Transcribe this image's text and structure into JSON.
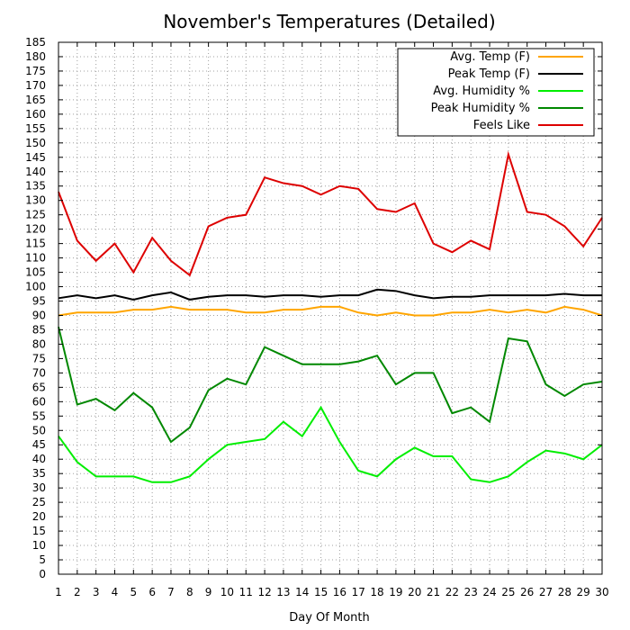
{
  "chart_data": {
    "type": "line",
    "title": "November's Temperatures (Detailed)",
    "xlabel": "Day Of Month",
    "ylabel": "",
    "xlim": [
      1,
      30
    ],
    "ylim": [
      0,
      185
    ],
    "y_tick_step": 5,
    "grid": true,
    "legend_position": "top-right",
    "x": [
      1,
      2,
      3,
      4,
      5,
      6,
      7,
      8,
      9,
      10,
      11,
      12,
      13,
      14,
      15,
      16,
      17,
      18,
      19,
      20,
      21,
      22,
      23,
      24,
      25,
      26,
      27,
      28,
      29,
      30
    ],
    "series": [
      {
        "name": "Avg. Temp (F)",
        "color": "#ffa500",
        "values": [
          90,
          91,
          91,
          91,
          92,
          92,
          93,
          92,
          92,
          92,
          91,
          91,
          92,
          92,
          93,
          93,
          91,
          90,
          91,
          90,
          90,
          91,
          91,
          92,
          91,
          92,
          91,
          93,
          92,
          90
        ]
      },
      {
        "name": "Peak Temp (F)",
        "color": "#000000",
        "values": [
          96,
          97,
          96,
          97,
          95.5,
          97,
          98,
          95.5,
          96.5,
          97,
          97,
          96.5,
          97,
          97,
          96.5,
          97,
          97,
          99,
          98.5,
          97,
          96,
          96.5,
          96.5,
          97,
          97,
          97,
          97,
          97.5,
          97,
          97
        ]
      },
      {
        "name": "Avg. Humidity %",
        "color": "#00ee00",
        "values": [
          48,
          39,
          34,
          34,
          34,
          32,
          32,
          34,
          40,
          45,
          46,
          47,
          53,
          48,
          58,
          46,
          36,
          34,
          40,
          44,
          41,
          41,
          33,
          32,
          34,
          39,
          43,
          42,
          40,
          45
        ]
      },
      {
        "name": "Peak Humidity %",
        "color": "#008800",
        "values": [
          86,
          59,
          61,
          57,
          63,
          58,
          46,
          51,
          64,
          68,
          66,
          79,
          76,
          73,
          73,
          73,
          74,
          76,
          66,
          70,
          70,
          56,
          58,
          53,
          82,
          81,
          66,
          62,
          66,
          67
        ]
      },
      {
        "name": "Feels Like",
        "color": "#dd0000",
        "values": [
          133,
          116,
          109,
          115,
          105,
          117,
          109,
          104,
          121,
          124,
          125,
          138,
          136,
          135,
          132,
          135,
          134,
          127,
          126,
          129,
          115,
          112,
          116,
          113,
          146,
          126,
          125,
          121,
          114,
          124
        ]
      }
    ]
  }
}
